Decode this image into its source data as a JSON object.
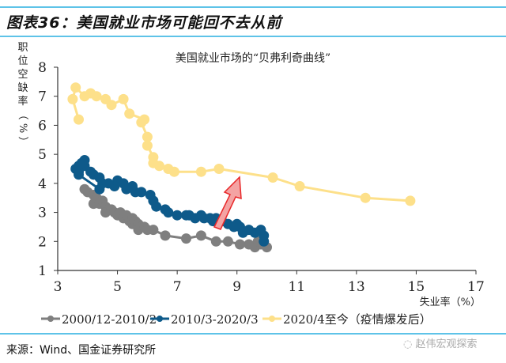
{
  "figure_title": "图表36：美国就业市场可能回不去从前",
  "source": "来源：Wind、国金证券研究所",
  "watermark": "赵伟宏观探索",
  "chart_data": {
    "type": "line",
    "title": "美国就业市场的“贝弗利奇曲线”",
    "xlabel": "失业率（%）",
    "ylabel": "职位空缺率（%）",
    "xlim": [
      3,
      17
    ],
    "ylim": [
      1,
      8
    ],
    "xticks": [
      3,
      5,
      7,
      9,
      11,
      13,
      15,
      17
    ],
    "yticks": [
      1,
      2,
      3,
      4,
      5,
      6,
      7,
      8
    ],
    "grid": false,
    "legend_position": "bottom",
    "annotation": "red arrow pointing up-right from the 2010-2020 curve toward the post-pandemic curve",
    "series": [
      {
        "name": "2000/12-2010/2",
        "color": "#7f7f7f",
        "points": [
          [
            3.9,
            3.8
          ],
          [
            4.0,
            3.7
          ],
          [
            4.2,
            3.6
          ],
          [
            4.3,
            3.5
          ],
          [
            4.2,
            3.3
          ],
          [
            4.4,
            3.3
          ],
          [
            4.5,
            3.4
          ],
          [
            4.6,
            3.2
          ],
          [
            4.7,
            3.1
          ],
          [
            4.6,
            3.0
          ],
          [
            4.8,
            3.1
          ],
          [
            4.9,
            3.0
          ],
          [
            5.0,
            2.9
          ],
          [
            5.1,
            3.0
          ],
          [
            5.2,
            2.8
          ],
          [
            5.3,
            2.9
          ],
          [
            5.4,
            2.7
          ],
          [
            5.5,
            2.8
          ],
          [
            5.5,
            2.6
          ],
          [
            5.6,
            2.7
          ],
          [
            5.7,
            2.6
          ],
          [
            5.8,
            2.5
          ],
          [
            5.7,
            2.4
          ],
          [
            5.9,
            2.5
          ],
          [
            6.0,
            2.4
          ],
          [
            6.2,
            2.4
          ],
          [
            6.6,
            2.2
          ],
          [
            7.3,
            2.1
          ],
          [
            7.8,
            2.2
          ],
          [
            8.3,
            2.0
          ],
          [
            8.7,
            2.0
          ],
          [
            9.1,
            1.9
          ],
          [
            9.4,
            1.9
          ],
          [
            9.6,
            1.8
          ],
          [
            9.8,
            1.9
          ],
          [
            9.7,
            2.0
          ],
          [
            9.9,
            2.0
          ],
          [
            10.0,
            1.8
          ]
        ]
      },
      {
        "name": "2010/3-2020/3",
        "color": "#0e5a8a",
        "points": [
          [
            9.9,
            2.0
          ],
          [
            9.9,
            2.2
          ],
          [
            9.8,
            2.4
          ],
          [
            9.6,
            2.3
          ],
          [
            9.4,
            2.4
          ],
          [
            9.2,
            2.3
          ],
          [
            9.1,
            2.5
          ],
          [
            9.0,
            2.6
          ],
          [
            8.9,
            2.5
          ],
          [
            8.7,
            2.6
          ],
          [
            8.5,
            2.7
          ],
          [
            8.3,
            2.8
          ],
          [
            8.2,
            2.7
          ],
          [
            8.1,
            2.8
          ],
          [
            7.9,
            2.8
          ],
          [
            7.8,
            2.9
          ],
          [
            7.6,
            2.8
          ],
          [
            7.4,
            2.9
          ],
          [
            7.3,
            2.9
          ],
          [
            7.0,
            2.9
          ],
          [
            6.7,
            3.0
          ],
          [
            6.6,
            3.1
          ],
          [
            6.3,
            3.2
          ],
          [
            6.2,
            3.4
          ],
          [
            6.1,
            3.6
          ],
          [
            5.8,
            3.7
          ],
          [
            5.6,
            3.7
          ],
          [
            5.5,
            3.9
          ],
          [
            5.3,
            3.8
          ],
          [
            5.2,
            4.0
          ],
          [
            5.0,
            4.1
          ],
          [
            4.9,
            3.9
          ],
          [
            4.7,
            4.0
          ],
          [
            4.5,
            4.0
          ],
          [
            4.4,
            4.2
          ],
          [
            4.2,
            4.3
          ],
          [
            4.1,
            4.4
          ],
          [
            3.9,
            4.6
          ],
          [
            3.7,
            4.4
          ],
          [
            3.6,
            4.5
          ],
          [
            3.7,
            4.6
          ],
          [
            3.8,
            4.7
          ],
          [
            3.9,
            4.8
          ],
          [
            3.7,
            4.3
          ],
          [
            4.4,
            3.8
          ]
        ]
      },
      {
        "name": "2020/4至今（疫情爆发后）",
        "color": "#fde08a",
        "points": [
          [
            14.8,
            3.4
          ],
          [
            13.3,
            3.5
          ],
          [
            11.1,
            3.9
          ],
          [
            10.2,
            4.2
          ],
          [
            8.4,
            4.5
          ],
          [
            7.8,
            4.4
          ],
          [
            6.9,
            4.4
          ],
          [
            6.7,
            4.5
          ],
          [
            6.4,
            4.6
          ],
          [
            6.2,
            4.7
          ],
          [
            6.2,
            4.9
          ],
          [
            6.0,
            5.3
          ],
          [
            6.0,
            5.6
          ],
          [
            5.8,
            6.1
          ],
          [
            5.9,
            6.2
          ],
          [
            5.4,
            6.4
          ],
          [
            5.2,
            6.9
          ],
          [
            4.8,
            6.7
          ],
          [
            4.6,
            6.9
          ],
          [
            4.3,
            7.0
          ],
          [
            4.1,
            7.1
          ],
          [
            3.9,
            7.0
          ],
          [
            3.6,
            7.3
          ],
          [
            3.5,
            6.9
          ],
          [
            3.7,
            6.2
          ]
        ]
      }
    ]
  }
}
